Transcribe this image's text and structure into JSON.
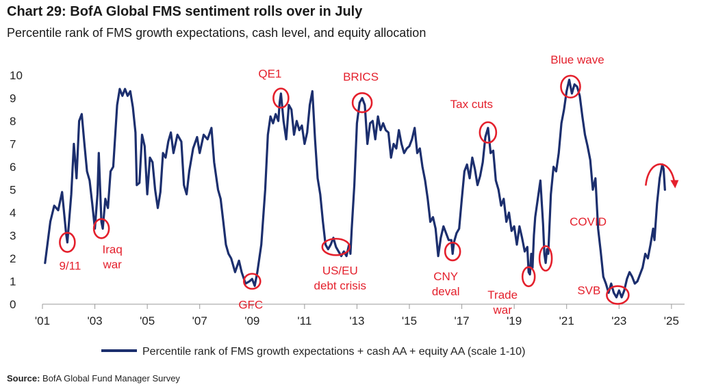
{
  "header": {
    "title": "Chart 29: BofA Global FMS sentiment rolls over in July",
    "subtitle": "Percentile rank of FMS growth expectations, cash level, and equity allocation"
  },
  "source": {
    "label": "Source:",
    "text": "BofA Global Fund Manager Survey"
  },
  "colors": {
    "line": "#1c2f6e",
    "annotation": "#e4202c"
  },
  "chart_data": {
    "type": "line",
    "xlim": [
      2001,
      2025.5
    ],
    "ylim": [
      0,
      10
    ],
    "grid": false,
    "legend_position": "bottom",
    "x_tick_values": [
      2001,
      2003,
      2005,
      2007,
      2009,
      2011,
      2013,
      2015,
      2017,
      2019,
      2021,
      2023,
      2025
    ],
    "x_tick_labels": [
      "'01",
      "'03",
      "'05",
      "'07",
      "'09",
      "'11",
      "'13",
      "'15",
      "'17",
      "'19",
      "'21",
      "'23",
      "'25"
    ],
    "y_ticks": [
      0,
      1,
      2,
      3,
      4,
      5,
      6,
      7,
      8,
      9,
      10
    ],
    "series": [
      {
        "name": "Percentile rank of FMS growth expectations + cash AA + equity AA (scale 1-10)",
        "points": [
          [
            2001.1,
            1.8
          ],
          [
            2001.3,
            3.6
          ],
          [
            2001.45,
            4.3
          ],
          [
            2001.6,
            4.1
          ],
          [
            2001.75,
            4.9
          ],
          [
            2001.9,
            3.1
          ],
          [
            2001.95,
            2.7
          ],
          [
            2002.1,
            4.8
          ],
          [
            2002.2,
            7.0
          ],
          [
            2002.3,
            5.5
          ],
          [
            2002.4,
            8.0
          ],
          [
            2002.5,
            8.3
          ],
          [
            2002.6,
            7.0
          ],
          [
            2002.7,
            5.8
          ],
          [
            2002.8,
            5.4
          ],
          [
            2002.9,
            4.4
          ],
          [
            2003.0,
            3.3
          ],
          [
            2003.1,
            4.8
          ],
          [
            2003.15,
            6.6
          ],
          [
            2003.25,
            3.6
          ],
          [
            2003.3,
            3.3
          ],
          [
            2003.4,
            4.6
          ],
          [
            2003.5,
            4.2
          ],
          [
            2003.6,
            5.8
          ],
          [
            2003.7,
            6.0
          ],
          [
            2003.85,
            8.7
          ],
          [
            2003.95,
            9.4
          ],
          [
            2004.05,
            9.1
          ],
          [
            2004.15,
            9.4
          ],
          [
            2004.25,
            9.1
          ],
          [
            2004.35,
            9.3
          ],
          [
            2004.45,
            8.6
          ],
          [
            2004.55,
            7.5
          ],
          [
            2004.6,
            5.2
          ],
          [
            2004.7,
            5.3
          ],
          [
            2004.8,
            7.4
          ],
          [
            2004.9,
            6.9
          ],
          [
            2005.0,
            4.8
          ],
          [
            2005.1,
            6.4
          ],
          [
            2005.2,
            6.2
          ],
          [
            2005.3,
            5.0
          ],
          [
            2005.4,
            4.2
          ],
          [
            2005.5,
            4.9
          ],
          [
            2005.6,
            6.6
          ],
          [
            2005.7,
            6.4
          ],
          [
            2005.8,
            7.1
          ],
          [
            2005.9,
            7.5
          ],
          [
            2006.0,
            6.6
          ],
          [
            2006.15,
            7.4
          ],
          [
            2006.3,
            7.1
          ],
          [
            2006.4,
            5.2
          ],
          [
            2006.5,
            4.8
          ],
          [
            2006.6,
            5.8
          ],
          [
            2006.75,
            6.8
          ],
          [
            2006.9,
            7.3
          ],
          [
            2007.0,
            6.6
          ],
          [
            2007.15,
            7.4
          ],
          [
            2007.3,
            7.2
          ],
          [
            2007.45,
            7.7
          ],
          [
            2007.55,
            6.2
          ],
          [
            2007.7,
            5.0
          ],
          [
            2007.8,
            4.6
          ],
          [
            2007.9,
            3.6
          ],
          [
            2008.0,
            2.6
          ],
          [
            2008.1,
            2.2
          ],
          [
            2008.2,
            2.0
          ],
          [
            2008.35,
            1.4
          ],
          [
            2008.5,
            1.9
          ],
          [
            2008.6,
            1.4
          ],
          [
            2008.75,
            0.9
          ],
          [
            2008.9,
            1.0
          ],
          [
            2009.0,
            1.1
          ],
          [
            2009.1,
            0.8
          ],
          [
            2009.2,
            1.4
          ],
          [
            2009.35,
            2.6
          ],
          [
            2009.5,
            5.0
          ],
          [
            2009.6,
            7.4
          ],
          [
            2009.7,
            8.2
          ],
          [
            2009.8,
            7.9
          ],
          [
            2009.9,
            8.3
          ],
          [
            2010.0,
            8.0
          ],
          [
            2010.05,
            8.8
          ],
          [
            2010.1,
            9.2
          ],
          [
            2010.2,
            8.0
          ],
          [
            2010.3,
            7.2
          ],
          [
            2010.4,
            8.7
          ],
          [
            2010.5,
            8.5
          ],
          [
            2010.6,
            7.4
          ],
          [
            2010.7,
            8.0
          ],
          [
            2010.8,
            7.6
          ],
          [
            2010.9,
            7.8
          ],
          [
            2011.0,
            7.0
          ],
          [
            2011.1,
            7.5
          ],
          [
            2011.2,
            8.7
          ],
          [
            2011.3,
            9.3
          ],
          [
            2011.4,
            7.2
          ],
          [
            2011.5,
            5.5
          ],
          [
            2011.6,
            4.8
          ],
          [
            2011.7,
            3.6
          ],
          [
            2011.8,
            2.6
          ],
          [
            2011.9,
            2.4
          ],
          [
            2012.0,
            2.6
          ],
          [
            2012.1,
            2.9
          ],
          [
            2012.2,
            2.5
          ],
          [
            2012.3,
            2.3
          ],
          [
            2012.4,
            2.1
          ],
          [
            2012.5,
            2.3
          ],
          [
            2012.6,
            2.1
          ],
          [
            2012.7,
            2.6
          ],
          [
            2012.75,
            2.2
          ],
          [
            2012.8,
            3.3
          ],
          [
            2012.9,
            5.2
          ],
          [
            2013.0,
            7.9
          ],
          [
            2013.1,
            8.8
          ],
          [
            2013.2,
            9.0
          ],
          [
            2013.3,
            8.7
          ],
          [
            2013.4,
            7.0
          ],
          [
            2013.5,
            7.9
          ],
          [
            2013.6,
            8.0
          ],
          [
            2013.7,
            7.2
          ],
          [
            2013.8,
            8.2
          ],
          [
            2013.9,
            7.6
          ],
          [
            2014.0,
            7.9
          ],
          [
            2014.1,
            7.6
          ],
          [
            2014.2,
            7.5
          ],
          [
            2014.3,
            6.4
          ],
          [
            2014.4,
            7.0
          ],
          [
            2014.5,
            6.8
          ],
          [
            2014.6,
            7.6
          ],
          [
            2014.7,
            7.0
          ],
          [
            2014.8,
            6.6
          ],
          [
            2014.9,
            6.8
          ],
          [
            2015.0,
            6.9
          ],
          [
            2015.1,
            7.2
          ],
          [
            2015.2,
            7.7
          ],
          [
            2015.3,
            6.6
          ],
          [
            2015.4,
            6.8
          ],
          [
            2015.5,
            6.0
          ],
          [
            2015.6,
            5.4
          ],
          [
            2015.7,
            4.6
          ],
          [
            2015.8,
            3.6
          ],
          [
            2015.9,
            3.8
          ],
          [
            2016.0,
            3.3
          ],
          [
            2016.1,
            2.1
          ],
          [
            2016.2,
            2.9
          ],
          [
            2016.3,
            3.4
          ],
          [
            2016.4,
            3.1
          ],
          [
            2016.5,
            2.8
          ],
          [
            2016.6,
            2.8
          ],
          [
            2016.65,
            2.2
          ],
          [
            2016.7,
            2.7
          ],
          [
            2016.8,
            3.1
          ],
          [
            2016.9,
            3.3
          ],
          [
            2017.0,
            4.6
          ],
          [
            2017.1,
            5.8
          ],
          [
            2017.2,
            6.1
          ],
          [
            2017.3,
            5.5
          ],
          [
            2017.4,
            6.4
          ],
          [
            2017.5,
            5.9
          ],
          [
            2017.6,
            5.2
          ],
          [
            2017.7,
            5.6
          ],
          [
            2017.8,
            6.2
          ],
          [
            2017.9,
            7.3
          ],
          [
            2018.0,
            7.7
          ],
          [
            2018.1,
            6.6
          ],
          [
            2018.2,
            6.7
          ],
          [
            2018.3,
            5.4
          ],
          [
            2018.4,
            5.0
          ],
          [
            2018.5,
            4.3
          ],
          [
            2018.6,
            4.6
          ],
          [
            2018.7,
            3.6
          ],
          [
            2018.8,
            4.0
          ],
          [
            2018.9,
            3.2
          ],
          [
            2019.0,
            3.4
          ],
          [
            2019.1,
            2.6
          ],
          [
            2019.2,
            3.4
          ],
          [
            2019.3,
            2.9
          ],
          [
            2019.4,
            2.3
          ],
          [
            2019.5,
            2.5
          ],
          [
            2019.55,
            1.4
          ],
          [
            2019.6,
            1.3
          ],
          [
            2019.65,
            2.2
          ],
          [
            2019.7,
            1.6
          ],
          [
            2019.75,
            3.0
          ],
          [
            2019.8,
            3.8
          ],
          [
            2019.9,
            4.6
          ],
          [
            2020.0,
            5.4
          ],
          [
            2020.1,
            3.5
          ],
          [
            2020.15,
            2.2
          ],
          [
            2020.2,
            1.8
          ],
          [
            2020.25,
            2.4
          ],
          [
            2020.3,
            2.2
          ],
          [
            2020.4,
            4.8
          ],
          [
            2020.5,
            6.0
          ],
          [
            2020.6,
            5.8
          ],
          [
            2020.7,
            6.6
          ],
          [
            2020.8,
            7.9
          ],
          [
            2020.9,
            8.5
          ],
          [
            2021.0,
            9.3
          ],
          [
            2021.1,
            9.8
          ],
          [
            2021.2,
            9.2
          ],
          [
            2021.3,
            9.6
          ],
          [
            2021.4,
            9.5
          ],
          [
            2021.5,
            9.1
          ],
          [
            2021.6,
            8.2
          ],
          [
            2021.7,
            7.4
          ],
          [
            2021.8,
            6.9
          ],
          [
            2021.9,
            6.3
          ],
          [
            2022.0,
            5.0
          ],
          [
            2022.1,
            5.5
          ],
          [
            2022.2,
            3.3
          ],
          [
            2022.3,
            2.3
          ],
          [
            2022.4,
            1.2
          ],
          [
            2022.5,
            0.9
          ],
          [
            2022.6,
            0.5
          ],
          [
            2022.7,
            0.9
          ],
          [
            2022.8,
            0.5
          ],
          [
            2022.9,
            0.3
          ],
          [
            2023.0,
            0.6
          ],
          [
            2023.1,
            0.3
          ],
          [
            2023.2,
            0.6
          ],
          [
            2023.3,
            1.1
          ],
          [
            2023.4,
            1.4
          ],
          [
            2023.5,
            1.2
          ],
          [
            2023.6,
            0.9
          ],
          [
            2023.7,
            1.0
          ],
          [
            2023.8,
            1.3
          ],
          [
            2023.9,
            1.6
          ],
          [
            2024.0,
            2.2
          ],
          [
            2024.1,
            2.0
          ],
          [
            2024.2,
            2.6
          ],
          [
            2024.3,
            3.3
          ],
          [
            2024.35,
            2.8
          ],
          [
            2024.45,
            4.4
          ],
          [
            2024.55,
            5.5
          ],
          [
            2024.65,
            6.1
          ],
          [
            2024.7,
            5.9
          ],
          [
            2024.75,
            5.0
          ]
        ]
      }
    ],
    "annotations": [
      {
        "label": "9/11",
        "x": 2001.95,
        "y": 2.7
      },
      {
        "label": "Iraq\nwar",
        "x": 2003.25,
        "y": 3.3
      },
      {
        "label": "GFC",
        "x": 2009.0,
        "y": 1.0
      },
      {
        "label": "QE1",
        "x": 2010.1,
        "y": 9.0
      },
      {
        "label": "US/EU\ndebt crisis",
        "x": 2012.2,
        "y": 2.5
      },
      {
        "label": "BRICS",
        "x": 2013.2,
        "y": 8.8
      },
      {
        "label": "CNY\ndeval",
        "x": 2016.65,
        "y": 2.3
      },
      {
        "label": "Tax cuts",
        "x": 2018.0,
        "y": 7.5
      },
      {
        "label": "Trade\nwar",
        "x": 2019.55,
        "y": 1.2
      },
      {
        "label": "COVID",
        "x": 2020.2,
        "y": 2.0
      },
      {
        "label": "Blue wave",
        "x": 2021.15,
        "y": 9.5
      },
      {
        "label": "SVB",
        "x": 2022.95,
        "y": 0.4
      }
    ]
  }
}
